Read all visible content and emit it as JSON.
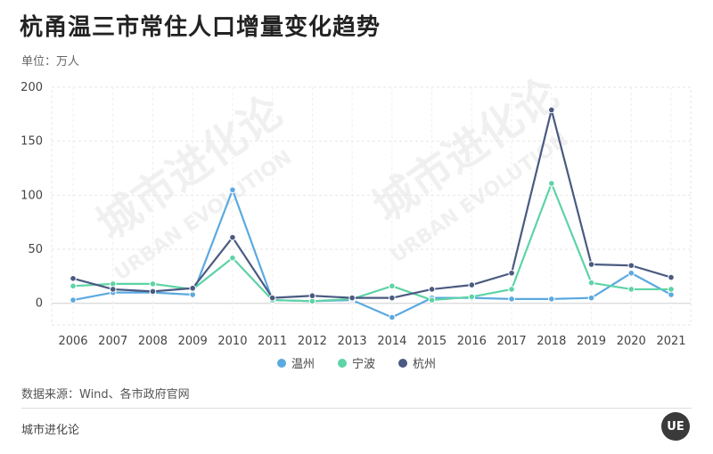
{
  "header": {
    "title": "杭甬温三市常住人口增量变化趋势",
    "unit": "单位：万人"
  },
  "footer": {
    "source": "数据来源：Wind、各市政府官网",
    "brand": "城市进化论",
    "logo_text": "UE"
  },
  "watermark": {
    "main": "城市进化论",
    "sub": "URBAN EVOLUTION"
  },
  "chart_data": {
    "type": "line",
    "x": [
      "2006",
      "2007",
      "2008",
      "2009",
      "2010",
      "2011",
      "2012",
      "2013",
      "2014",
      "2015",
      "2016",
      "2017",
      "2018",
      "2019",
      "2020",
      "2021"
    ],
    "series": [
      {
        "name": "温州",
        "color": "#5ba9e0",
        "values": [
          3,
          10,
          10,
          8,
          105,
          3,
          2,
          3,
          -13,
          5,
          5,
          4,
          4,
          5,
          28,
          8
        ]
      },
      {
        "name": "宁波",
        "color": "#5ed3a6",
        "values": [
          16,
          18,
          18,
          13,
          42,
          3,
          2,
          4,
          16,
          3,
          6,
          13,
          111,
          19,
          13,
          13
        ]
      },
      {
        "name": "杭州",
        "color": "#4a5a80",
        "values": [
          23,
          13,
          11,
          14,
          61,
          5,
          7,
          5,
          5,
          13,
          17,
          28,
          179,
          36,
          35,
          24
        ]
      }
    ],
    "ylim": [
      -20,
      200
    ],
    "yticks": [
      0,
      50,
      100,
      150,
      200
    ],
    "grid": true,
    "legend": "bottom-center"
  }
}
